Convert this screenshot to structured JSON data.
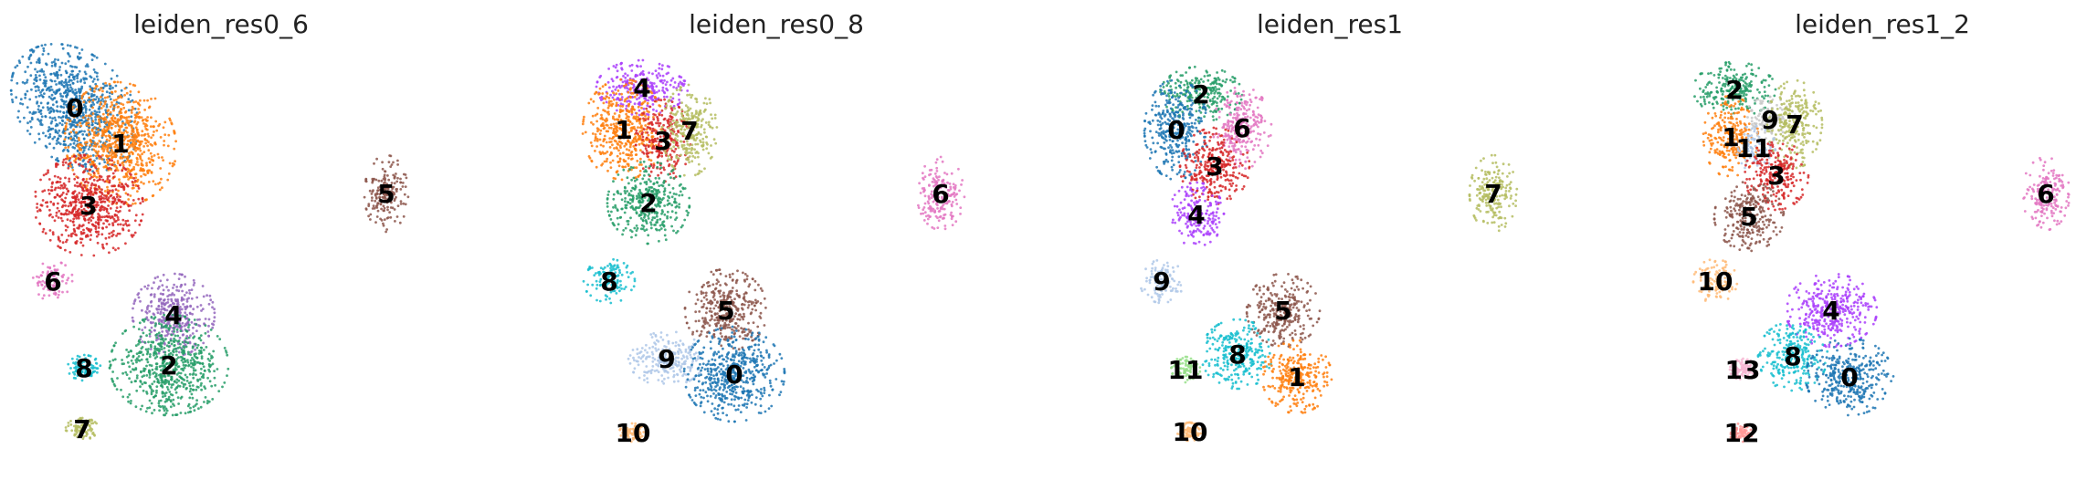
{
  "chart_data": [
    {
      "type": "scatter",
      "title": "leiden_res0_6",
      "clusters": [
        {
          "label": "0",
          "color": "#1f77b4"
        },
        {
          "label": "1",
          "color": "#ff7f0e"
        },
        {
          "label": "3",
          "color": "#d62728"
        },
        {
          "label": "6",
          "color": "#e377c2"
        },
        {
          "label": "4",
          "color": "#9467bd"
        },
        {
          "label": "2",
          "color": "#279e68"
        },
        {
          "label": "8",
          "color": "#17becf"
        },
        {
          "label": "7",
          "color": "#b5bd61"
        },
        {
          "label": "5",
          "color": "#8c564b"
        }
      ]
    },
    {
      "type": "scatter",
      "title": "leiden_res0_8",
      "clusters": [
        {
          "label": "4",
          "color": "#aa40fc"
        },
        {
          "label": "1",
          "color": "#ff7f0e"
        },
        {
          "label": "3",
          "color": "#d62728"
        },
        {
          "label": "7",
          "color": "#b5bd61"
        },
        {
          "label": "2",
          "color": "#279e68"
        },
        {
          "label": "8",
          "color": "#17becf"
        },
        {
          "label": "5",
          "color": "#8c564b"
        },
        {
          "label": "9",
          "color": "#aec7e8"
        },
        {
          "label": "0",
          "color": "#1f77b4"
        },
        {
          "label": "10",
          "color": "#ffbb78"
        },
        {
          "label": "6",
          "color": "#e377c2"
        }
      ]
    },
    {
      "type": "scatter",
      "title": "leiden_res1",
      "clusters": [
        {
          "label": "2",
          "color": "#279e68"
        },
        {
          "label": "0",
          "color": "#1f77b4"
        },
        {
          "label": "6",
          "color": "#e377c2"
        },
        {
          "label": "3",
          "color": "#d62728"
        },
        {
          "label": "4",
          "color": "#aa40fc"
        },
        {
          "label": "9",
          "color": "#aec7e8"
        },
        {
          "label": "5",
          "color": "#8c564b"
        },
        {
          "label": "8",
          "color": "#17becf"
        },
        {
          "label": "11",
          "color": "#98df8a"
        },
        {
          "label": "1",
          "color": "#ff7f0e"
        },
        {
          "label": "10",
          "color": "#ffbb78"
        },
        {
          "label": "7",
          "color": "#b5bd61"
        }
      ]
    },
    {
      "type": "scatter",
      "title": "leiden_res1_2",
      "clusters": [
        {
          "label": "2",
          "color": "#279e68"
        },
        {
          "label": "9",
          "color": "#c7c7c7"
        },
        {
          "label": "7",
          "color": "#b5bd61"
        },
        {
          "label": "1",
          "color": "#ff7f0e"
        },
        {
          "label": "11",
          "color": "#aec7e8"
        },
        {
          "label": "3",
          "color": "#d62728"
        },
        {
          "label": "5",
          "color": "#8c564b"
        },
        {
          "label": "10",
          "color": "#ffbb78"
        },
        {
          "label": "4",
          "color": "#aa40fc"
        },
        {
          "label": "8",
          "color": "#17becf"
        },
        {
          "label": "13",
          "color": "#f7b6d2"
        },
        {
          "label": "0",
          "color": "#1f77b4"
        },
        {
          "label": "12",
          "color": "#ff9896"
        },
        {
          "label": "6",
          "color": "#e377c2"
        }
      ]
    }
  ]
}
